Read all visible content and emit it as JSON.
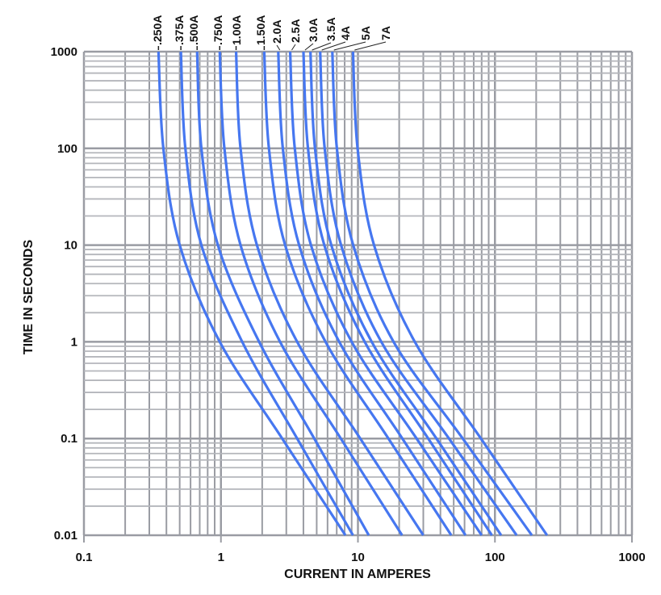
{
  "chart_data": {
    "type": "line",
    "xlabel": "CURRENT IN AMPERES",
    "ylabel": "TIME IN SECONDS",
    "x_scale": "log",
    "y_scale": "log",
    "xlim": [
      0.1,
      1000
    ],
    "ylim": [
      0.01,
      1000
    ],
    "grid": true,
    "x_ticks": [
      "0.1",
      "1",
      "10",
      "100",
      "1000"
    ],
    "y_ticks": [
      "1000",
      "100",
      "10",
      "1",
      "0.1",
      "0.01"
    ],
    "line_color": "#4677F0",
    "grid_color": "#9a9ca3",
    "time_points": [
      1000,
      100,
      10,
      1,
      0.1,
      0.01
    ],
    "series": [
      {
        "name": ".250A",
        "current": [
          0.35,
          0.38,
          0.5,
          0.98,
          2.8,
          8.1
        ]
      },
      {
        "name": ".375A",
        "current": [
          0.51,
          0.55,
          0.72,
          1.43,
          3.6,
          9.2
        ]
      },
      {
        "name": ".500A",
        "current": [
          0.67,
          0.72,
          0.95,
          1.9,
          4.8,
          12
        ]
      },
      {
        "name": ".750A",
        "current": [
          0.98,
          1.06,
          1.39,
          2.7,
          7.5,
          21
        ]
      },
      {
        "name": "1.00A",
        "current": [
          1.29,
          1.39,
          1.83,
          3.6,
          10.4,
          30
        ]
      },
      {
        "name": "1.50A",
        "current": [
          2.07,
          2.24,
          2.94,
          5.8,
          16.7,
          48
        ]
      },
      {
        "name": "2.0A",
        "current": [
          2.62,
          2.83,
          3.72,
          7.3,
          21.1,
          61
        ]
      },
      {
        "name": "2.5A",
        "current": [
          3.2,
          3.46,
          4.54,
          9.0,
          26.8,
          80
        ]
      },
      {
        "name": "3.0A",
        "current": [
          4.0,
          4.32,
          5.68,
          11.2,
          32.6,
          95
        ]
      },
      {
        "name": "3.5A",
        "current": [
          4.5,
          4.86,
          6.39,
          12.6,
          37.4,
          111
        ]
      },
      {
        "name": "4A",
        "current": [
          5.3,
          5.72,
          7.53,
          14.8,
          46.2,
          144
        ]
      },
      {
        "name": "5A",
        "current": [
          6.5,
          7.02,
          9.23,
          18.2,
          58.2,
          186
        ]
      },
      {
        "name": "7A",
        "current": [
          9.2,
          9.94,
          13.1,
          26,
          79,
          240
        ]
      }
    ]
  }
}
